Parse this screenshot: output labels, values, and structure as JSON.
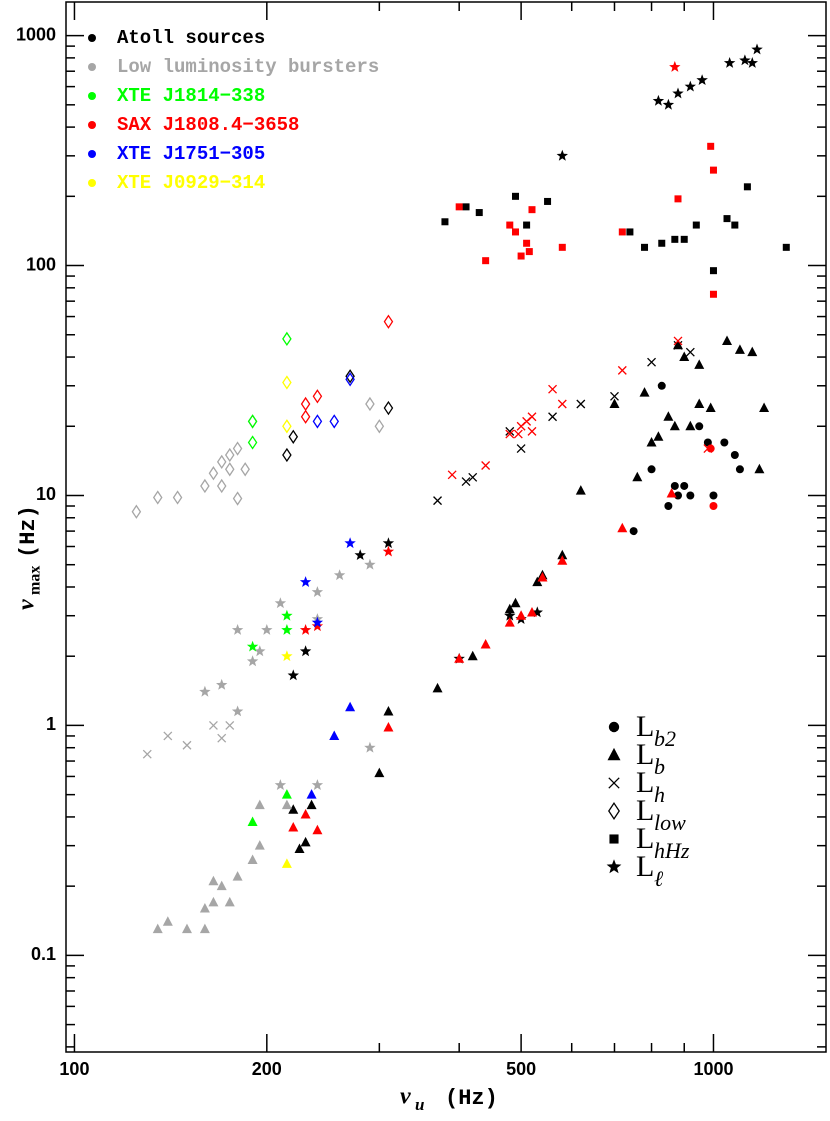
{
  "chart_data": {
    "type": "scatter",
    "xlabel": {
      "symbol": "ν",
      "sub": "u",
      "unit": "(Hz)"
    },
    "ylabel": {
      "symbol": "ν",
      "sub": "max",
      "unit": "(Hz)"
    },
    "xscale": "log",
    "yscale": "log",
    "xlim": [
      97,
      1500
    ],
    "ylim": [
      0.038,
      1400
    ],
    "xticks": [
      100,
      200,
      500,
      1000
    ],
    "yticks": [
      0.1,
      1,
      10,
      100,
      1000
    ],
    "xminorticks": [
      300,
      400,
      600,
      700,
      800,
      900
    ],
    "yminorticks": [
      0.04,
      0.05,
      0.06,
      0.07,
      0.08,
      0.09,
      0.2,
      0.3,
      0.4,
      0.5,
      0.6,
      0.7,
      0.8,
      0.9,
      2,
      3,
      4,
      5,
      6,
      7,
      8,
      9,
      20,
      30,
      40,
      50,
      60,
      70,
      80,
      90,
      200,
      300,
      400,
      500,
      600,
      700,
      800,
      900
    ],
    "legend": "upper left",
    "series": [
      {
        "name": "Atoll sources",
        "color": "#000000",
        "x": [
          820,
          850,
          880,
          920,
          960,
          1060,
          1120,
          1150,
          1170,
          580,
          740,
          780,
          830,
          870,
          900,
          940,
          1000,
          1050,
          1080,
          1130,
          1300,
          380,
          410,
          430,
          490,
          510,
          550,
          880,
          900,
          950,
          1050,
          1100,
          1150,
          700,
          780,
          820,
          850,
          870,
          920,
          950,
          990,
          1200,
          800,
          760,
          1180,
          830,
          850,
          870,
          880,
          900,
          920,
          950,
          980,
          1000,
          1040,
          1080,
          1100,
          750,
          800,
          480,
          500,
          370,
          410,
          420,
          560,
          620,
          700,
          800,
          880,
          920,
          620,
          580,
          530,
          540,
          480,
          490,
          420,
          370,
          310,
          300,
          235,
          230,
          225,
          220,
          480,
          500,
          530,
          400,
          220,
          280,
          310,
          230,
          215,
          220,
          270,
          310
        ],
        "y": [
          520,
          500,
          560,
          600,
          640,
          760,
          780,
          760,
          870,
          300,
          140,
          120,
          125,
          130,
          130,
          150,
          95,
          160,
          150,
          220,
          120,
          155,
          180,
          170,
          200,
          150,
          190,
          45,
          40,
          37,
          47,
          43,
          42,
          25,
          28,
          18,
          22,
          20,
          20,
          25,
          24,
          24,
          17,
          12,
          13,
          30,
          9,
          11,
          10,
          11,
          10,
          20,
          17,
          10,
          17,
          15,
          13,
          7,
          13,
          19,
          16,
          9.5,
          11.5,
          12,
          22,
          25,
          27,
          38,
          45,
          42,
          10.5,
          5.5,
          4.2,
          4.5,
          3.2,
          3.4,
          2.0,
          1.45,
          1.15,
          0.62,
          0.45,
          0.31,
          0.29,
          0.43,
          3.0,
          2.9,
          3.1,
          1.95,
          1.65,
          5.5,
          6.2,
          2.1,
          15,
          18,
          33,
          24
        ],
        "marker": [
          "*",
          "*",
          "*",
          "*",
          "*",
          "*",
          "*",
          "*",
          "*",
          "*",
          "s",
          "s",
          "s",
          "s",
          "s",
          "s",
          "s",
          "s",
          "s",
          "s",
          "s",
          "s",
          "s",
          "s",
          "s",
          "s",
          "s",
          "t",
          "t",
          "t",
          "t",
          "t",
          "t",
          "t",
          "t",
          "t",
          "t",
          "t",
          "t",
          "t",
          "t",
          "t",
          "t",
          "t",
          "t",
          "c",
          "c",
          "c",
          "c",
          "c",
          "c",
          "c",
          "c",
          "c",
          "c",
          "c",
          "c",
          "c",
          "c",
          "x",
          "x",
          "x",
          "x",
          "x",
          "x",
          "x",
          "x",
          "x",
          "x",
          "x",
          "t",
          "t",
          "t",
          "t",
          "t",
          "t",
          "t",
          "t",
          "t",
          "t",
          "t",
          "t",
          "t",
          "t",
          "*",
          "*",
          "*",
          "*",
          "*",
          "*",
          "*",
          "*",
          "d",
          "d",
          "d",
          "d"
        ]
      },
      {
        "name": "Low luminosity bursters",
        "color": "#a6a6a6",
        "x": [
          125,
          135,
          145,
          160,
          165,
          170,
          175,
          170,
          175,
          185,
          180,
          190,
          180,
          290,
          300,
          130,
          140,
          150,
          165,
          175,
          170,
          180,
          190,
          195,
          170,
          160,
          180,
          200,
          210,
          240,
          260,
          290,
          240,
          290,
          210,
          240,
          135,
          140,
          150,
          160,
          165,
          170,
          175,
          180,
          190,
          195,
          195,
          215,
          165,
          160
        ],
        "y": [
          8.5,
          9.8,
          9.8,
          11,
          12.5,
          14,
          15,
          11,
          13,
          13,
          16,
          21,
          9.7,
          25,
          20,
          0.75,
          0.9,
          0.82,
          1.0,
          1.0,
          0.88,
          1.15,
          1.9,
          2.1,
          1.5,
          1.4,
          2.6,
          2.6,
          3.4,
          3.8,
          4.5,
          5.0,
          2.9,
          0.8,
          0.55,
          0.55,
          0.13,
          0.14,
          0.13,
          0.16,
          0.17,
          0.2,
          0.17,
          0.22,
          0.26,
          0.3,
          0.45,
          0.45,
          0.21,
          0.13
        ],
        "marker": [
          "d",
          "d",
          "d",
          "d",
          "d",
          "d",
          "d",
          "d",
          "d",
          "d",
          "d",
          "d",
          "d",
          "d",
          "d",
          "x",
          "x",
          "x",
          "x",
          "x",
          "x",
          "*",
          "*",
          "*",
          "*",
          "*",
          "*",
          "*",
          "*",
          "*",
          "*",
          "*",
          "*",
          "*",
          "*",
          "*",
          "t",
          "t",
          "t",
          "t",
          "t",
          "t",
          "t",
          "t",
          "t",
          "t",
          "t",
          "t",
          "t",
          "t"
        ]
      },
      {
        "name": "XTE J1814−338",
        "color": "#00ff00",
        "x": [
          215,
          190,
          190,
          215,
          190,
          215,
          215,
          190
        ],
        "y": [
          48,
          21,
          17,
          3.0,
          2.2,
          2.6,
          0.5,
          0.38
        ],
        "marker": [
          "d",
          "d",
          "d",
          "*",
          "*",
          "*",
          "t",
          "t"
        ]
      },
      {
        "name": "SAX J1808.4−3658",
        "color": "#ff0000",
        "x": [
          310,
          230,
          230,
          240,
          390,
          440,
          480,
          500,
          510,
          520,
          560,
          580,
          720,
          880,
          980,
          520,
          495,
          400,
          440,
          480,
          490,
          500,
          510,
          515,
          520,
          580,
          720,
          880,
          990,
          1000,
          1000,
          870,
          310,
          230,
          240,
          310,
          220,
          240,
          230,
          400,
          440,
          480,
          500,
          520,
          540,
          580,
          720,
          860,
          1000,
          990
        ],
        "y": [
          57,
          25,
          22,
          27,
          12.3,
          13.5,
          18.5,
          20,
          21,
          22,
          29,
          25,
          35,
          47,
          16,
          19,
          18.5,
          180,
          105,
          150,
          140,
          110,
          125,
          115,
          175,
          120,
          140,
          195,
          330,
          260,
          75,
          730,
          5.7,
          2.6,
          2.7,
          0.98,
          0.36,
          0.35,
          0.41,
          1.95,
          2.25,
          2.8,
          3.0,
          3.1,
          4.4,
          5.2,
          7.2,
          10.2,
          9,
          16
        ],
        "marker": [
          "d",
          "d",
          "d",
          "d",
          "x",
          "x",
          "x",
          "x",
          "x",
          "x",
          "x",
          "x",
          "x",
          "x",
          "x",
          "x",
          "x",
          "s",
          "s",
          "s",
          "s",
          "s",
          "s",
          "s",
          "s",
          "s",
          "s",
          "s",
          "s",
          "s",
          "s",
          "*",
          "*",
          "*",
          "*",
          "t",
          "t",
          "t",
          "t",
          "t",
          "t",
          "t",
          "t",
          "t",
          "t",
          "t",
          "t",
          "t",
          "c",
          "c"
        ]
      },
      {
        "name": "XTE J1751−305",
        "color": "#0000ff",
        "x": [
          270,
          240,
          255,
          270,
          230,
          240,
          270,
          255,
          235
        ],
        "y": [
          32,
          21,
          21,
          6.2,
          4.2,
          2.8,
          1.2,
          0.9,
          0.5
        ],
        "marker": [
          "d",
          "d",
          "d",
          "*",
          "*",
          "*",
          "t",
          "t",
          "t"
        ]
      },
      {
        "name": "XTE J0929−314",
        "color": "#ffff00",
        "x": [
          215,
          215,
          215,
          215
        ],
        "y": [
          31,
          20,
          2.0,
          0.25
        ],
        "marker": [
          "d",
          "d",
          "*",
          "t"
        ]
      }
    ],
    "marker_legend": [
      {
        "marker": "c",
        "label": "L",
        "sub": "b2"
      },
      {
        "marker": "t",
        "label": "L",
        "sub": "b"
      },
      {
        "marker": "x",
        "label": "L",
        "sub": "h"
      },
      {
        "marker": "d",
        "label": "L",
        "sub": "low"
      },
      {
        "marker": "s",
        "label": "L",
        "sub": "hHz"
      },
      {
        "marker": "*",
        "label": "L",
        "sub": "ℓ"
      }
    ]
  }
}
